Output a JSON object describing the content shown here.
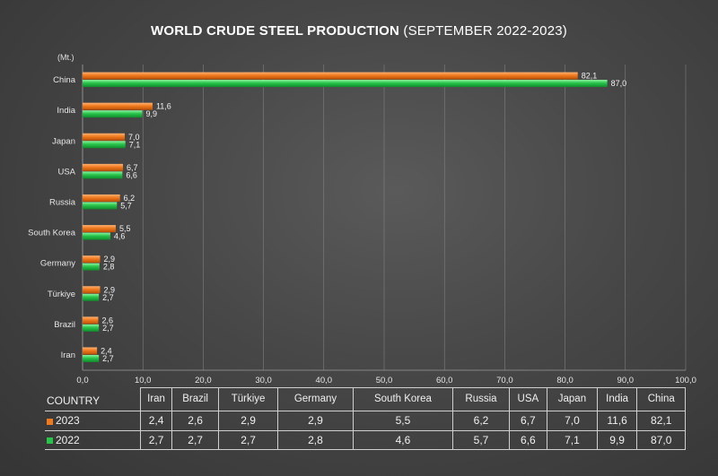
{
  "title_bold": "WORLD CRUDE STEEL PRODUCTION",
  "title_rest": " (SEPTEMBER 2022-2023)",
  "unit_label": "(Mt.)",
  "table_header_label": "COUNTRY",
  "colors": {
    "series_2023": "#f07a1e",
    "series_2022": "#27c44a",
    "grid": "#8a8a8a"
  },
  "chart_data": {
    "type": "bar",
    "orientation": "horizontal",
    "title": "WORLD CRUDE STEEL PRODUCTION (SEPTEMBER 2022-2023)",
    "ylabel": "(Mt.)",
    "categories": [
      "China",
      "India",
      "Japan",
      "USA",
      "Russia",
      "South Korea",
      "Germany",
      "Türkiye",
      "Brazil",
      "Iran"
    ],
    "table_order": [
      "Iran",
      "Brazil",
      "Türkiye",
      "Germany",
      "South Korea",
      "Russia",
      "USA",
      "Japan",
      "India",
      "China"
    ],
    "series": [
      {
        "name": "2023",
        "values": [
          82.1,
          11.6,
          7.0,
          6.7,
          6.2,
          5.5,
          2.9,
          2.9,
          2.6,
          2.4
        ],
        "labels": [
          "82,1",
          "11,6",
          "7,0",
          "6,7",
          "6,2",
          "5,5",
          "2,9",
          "2,9",
          "2,6",
          "2,4"
        ]
      },
      {
        "name": "2022",
        "values": [
          87.0,
          9.9,
          7.1,
          6.6,
          5.7,
          4.6,
          2.8,
          2.7,
          2.7,
          2.7
        ],
        "labels": [
          "87,0",
          "9,9",
          "7,1",
          "6,6",
          "5,7",
          "4,6",
          "2,8",
          "2,7",
          "2,7",
          "2,7"
        ]
      }
    ],
    "xlim": [
      0,
      100
    ],
    "x_ticks": [
      0,
      10,
      20,
      30,
      40,
      50,
      60,
      70,
      80,
      90,
      100
    ],
    "x_tick_labels": [
      "0,0",
      "10,0",
      "20,0",
      "30,0",
      "40,0",
      "50,0",
      "60,0",
      "70,0",
      "80,0",
      "90,0",
      "100,0"
    ],
    "grid": true,
    "legend": "data-table"
  }
}
